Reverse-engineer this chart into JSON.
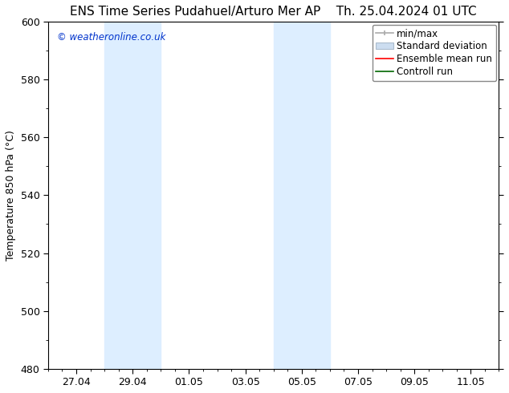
{
  "title_left": "ENS Time Series Pudahuel/Arturo Mer AP",
  "title_right": "Th. 25.04.2024 01 UTC",
  "ylabel": "Temperature 850 hPa (°C)",
  "watermark": "© weatheronline.co.uk",
  "ylim": [
    480,
    600
  ],
  "yticks": [
    480,
    500,
    520,
    540,
    560,
    580,
    600
  ],
  "x_tick_labels": [
    "27.04",
    "29.04",
    "01.05",
    "03.05",
    "05.05",
    "07.05",
    "09.05",
    "11.05"
  ],
  "x_tick_positions": [
    1,
    3,
    5,
    7,
    9,
    11,
    13,
    15
  ],
  "xlim": [
    0,
    16
  ],
  "shaded_bands": [
    {
      "x_start": 2.0,
      "x_end": 3.0
    },
    {
      "x_start": 3.0,
      "x_end": 4.0
    },
    {
      "x_start": 8.0,
      "x_end": 9.0
    },
    {
      "x_start": 9.0,
      "x_end": 10.0
    }
  ],
  "shade_color": "#ddeeff",
  "background_color": "#ffffff",
  "plot_bg_color": "#ffffff",
  "legend_items": [
    {
      "label": "min/max",
      "color": "#aaaaaa"
    },
    {
      "label": "Standard deviation",
      "color": "#ccddf0"
    },
    {
      "label": "Ensemble mean run",
      "color": "#ff0000"
    },
    {
      "label": "Controll run",
      "color": "#006600"
    }
  ],
  "watermark_color": "#0033cc",
  "title_fontsize": 11,
  "axis_label_fontsize": 9,
  "tick_fontsize": 9,
  "legend_fontsize": 8.5
}
